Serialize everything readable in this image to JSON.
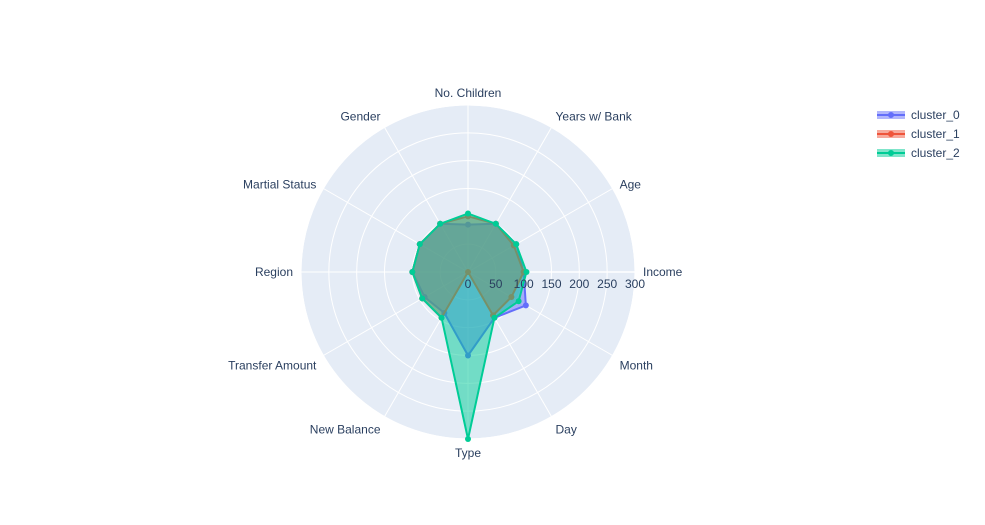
{
  "chart_data": {
    "type": "radar",
    "theta": [
      "Income",
      "Age",
      "Years w/ Bank",
      "No. Children",
      "Gender",
      "Martial Status",
      "Region",
      "Transfer Amount",
      "New Balance",
      "Type",
      "Day",
      "Month"
    ],
    "radial_range": [
      0,
      300
    ],
    "radial_ticks": [
      "0",
      "50",
      "100",
      "150",
      "200",
      "250",
      "300"
    ],
    "grid": true,
    "legend_position": "top-right",
    "series": [
      {
        "name": "cluster_0",
        "color": "#636efa",
        "fill": "toself",
        "values": [
          100,
          100,
          100,
          85,
          100,
          100,
          100,
          90,
          85,
          150,
          95,
          120
        ]
      },
      {
        "name": "cluster_1",
        "color": "#ef553b",
        "fill": "toself",
        "values": [
          100,
          95,
          100,
          100,
          100,
          100,
          100,
          95,
          95,
          0,
          90,
          90
        ]
      },
      {
        "name": "cluster_2",
        "color": "#00cc96",
        "fill": "toself",
        "values": [
          105,
          100,
          100,
          105,
          100,
          100,
          100,
          95,
          95,
          300,
          95,
          105
        ]
      }
    ]
  }
}
